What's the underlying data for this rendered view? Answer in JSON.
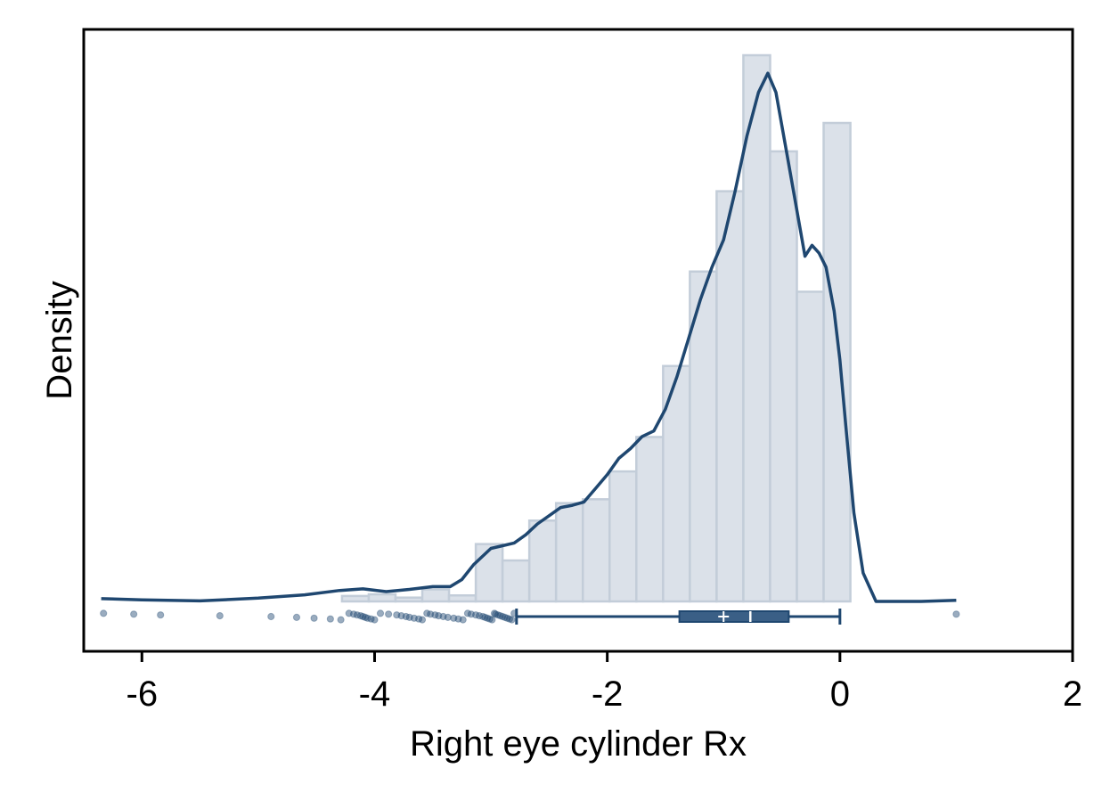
{
  "chart_data": {
    "type": "histogram",
    "title": "",
    "xlabel": "Right eye cylinder Rx",
    "ylabel": "Density",
    "xlim": [
      -6.5,
      2.0
    ],
    "ylim": [
      0,
      1.0
    ],
    "x_ticks": [
      -6,
      -4,
      -2,
      0,
      2
    ],
    "x_tick_labels": [
      "-6",
      "-4",
      "-2",
      "0",
      "2"
    ],
    "y_ticks_shown": false,
    "grid": false,
    "legend": "none",
    "colors": {
      "bar_fill": "#dbe1e9",
      "bar_stroke": "#c3cdd9",
      "line": "#1f4770",
      "box_fill": "#3a5f86",
      "points": "#1f4770"
    },
    "histogram": {
      "bin_width": 0.23,
      "bins": [
        {
          "x0": -4.28,
          "x1": -4.05,
          "y": 0.01
        },
        {
          "x0": -4.05,
          "x1": -3.82,
          "y": 0.013
        },
        {
          "x0": -3.82,
          "x1": -3.59,
          "y": 0.007
        },
        {
          "x0": -3.59,
          "x1": -3.36,
          "y": 0.022
        },
        {
          "x0": -3.36,
          "x1": -3.13,
          "y": 0.011
        },
        {
          "x0": -3.13,
          "x1": -2.9,
          "y": 0.105
        },
        {
          "x0": -2.9,
          "x1": -2.67,
          "y": 0.075
        },
        {
          "x0": -2.67,
          "x1": -2.44,
          "y": 0.148
        },
        {
          "x0": -2.44,
          "x1": -2.21,
          "y": 0.18
        },
        {
          "x0": -2.21,
          "x1": -1.98,
          "y": 0.187
        },
        {
          "x0": -1.98,
          "x1": -1.75,
          "y": 0.238
        },
        {
          "x0": -1.75,
          "x1": -1.52,
          "y": 0.301
        },
        {
          "x0": -1.52,
          "x1": -1.29,
          "y": 0.431
        },
        {
          "x0": -1.29,
          "x1": -1.06,
          "y": 0.604
        },
        {
          "x0": -1.06,
          "x1": -0.83,
          "y": 0.751
        },
        {
          "x0": -0.83,
          "x1": -0.6,
          "y": 1.0
        },
        {
          "x0": -0.6,
          "x1": -0.37,
          "y": 0.824
        },
        {
          "x0": -0.37,
          "x1": -0.14,
          "y": 0.567
        },
        {
          "x0": -0.14,
          "x1": 0.09,
          "y": 0.876
        }
      ]
    },
    "density_curve": {
      "x": [
        -6.35,
        -6.0,
        -5.5,
        -5.0,
        -4.6,
        -4.3,
        -4.1,
        -3.9,
        -3.7,
        -3.5,
        -3.35,
        -3.25,
        -3.15,
        -3.0,
        -2.9,
        -2.8,
        -2.7,
        -2.6,
        -2.5,
        -2.4,
        -2.3,
        -2.2,
        -2.1,
        -2.0,
        -1.9,
        -1.8,
        -1.7,
        -1.6,
        -1.5,
        -1.4,
        -1.3,
        -1.2,
        -1.1,
        -1.0,
        -0.9,
        -0.8,
        -0.7,
        -0.62,
        -0.55,
        -0.45,
        -0.35,
        -0.3,
        -0.24,
        -0.18,
        -0.12,
        -0.05,
        0.0,
        0.05,
        0.12,
        0.2,
        0.31,
        0.45,
        0.7,
        1.0
      ],
      "y": [
        0.005,
        0.003,
        0.001,
        0.006,
        0.012,
        0.02,
        0.023,
        0.018,
        0.022,
        0.027,
        0.027,
        0.04,
        0.067,
        0.097,
        0.102,
        0.107,
        0.122,
        0.142,
        0.157,
        0.172,
        0.176,
        0.182,
        0.207,
        0.232,
        0.262,
        0.28,
        0.302,
        0.312,
        0.352,
        0.412,
        0.482,
        0.552,
        0.612,
        0.662,
        0.752,
        0.852,
        0.932,
        0.967,
        0.932,
        0.812,
        0.692,
        0.632,
        0.652,
        0.638,
        0.612,
        0.532,
        0.442,
        0.322,
        0.162,
        0.052,
        0.0,
        0.0,
        0.0,
        0.002
      ]
    },
    "boxplot": {
      "whisker_low": -2.78,
      "q1": -1.38,
      "median": -0.77,
      "mean": -1.0,
      "q3": -0.44,
      "whisker_high": 0.0
    },
    "strip_points_x": [
      -6.33,
      -6.07,
      -5.84,
      -5.33,
      -4.89,
      -4.67,
      -4.52,
      -4.38,
      -4.29,
      -4.22,
      -4.18,
      -4.15,
      -4.12,
      -4.1,
      -4.08,
      -4.06,
      -4.03,
      -4.0,
      -3.95,
      -3.88,
      -3.81,
      -3.77,
      -3.73,
      -3.7,
      -3.66,
      -3.62,
      -3.59,
      -3.55,
      -3.52,
      -3.48,
      -3.45,
      -3.41,
      -3.37,
      -3.32,
      -3.28,
      -3.24,
      -3.2,
      -3.17,
      -3.13,
      -3.1,
      -3.07,
      -3.05,
      -3.03,
      -3.01,
      -2.99,
      -2.97,
      -2.96,
      -2.94,
      -2.92,
      -2.9,
      -2.88,
      -2.86,
      -2.84,
      -2.82,
      -2.8,
      1.0
    ]
  }
}
